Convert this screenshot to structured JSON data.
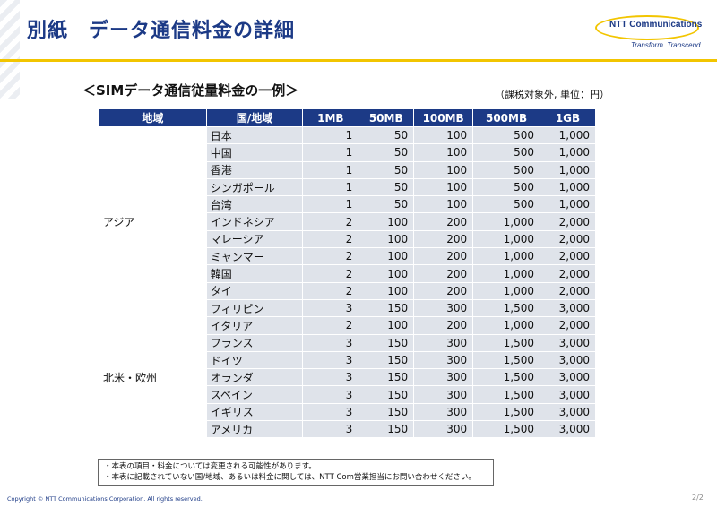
{
  "header": {
    "title": "別紙　データ通信料金の詳細",
    "logo_brand": "NTT Communications",
    "logo_tagline": "Transform. Transcend."
  },
  "subtitle": "＜SIMデータ通信従量料金の一例＞",
  "unit_note": "（課税対象外, 単位：円）",
  "table": {
    "headers": [
      "地域",
      "国/地域",
      "1MB",
      "50MB",
      "100MB",
      "500MB",
      "1GB"
    ],
    "groups": [
      {
        "region": "アジア",
        "rows": [
          {
            "country": "日本",
            "values": [
              "1",
              "50",
              "100",
              "500",
              "1,000"
            ]
          },
          {
            "country": "中国",
            "values": [
              "1",
              "50",
              "100",
              "500",
              "1,000"
            ]
          },
          {
            "country": "香港",
            "values": [
              "1",
              "50",
              "100",
              "500",
              "1,000"
            ]
          },
          {
            "country": "シンガポール",
            "values": [
              "1",
              "50",
              "100",
              "500",
              "1,000"
            ]
          },
          {
            "country": "台湾",
            "values": [
              "1",
              "50",
              "100",
              "500",
              "1,000"
            ]
          },
          {
            "country": "インドネシア",
            "values": [
              "2",
              "100",
              "200",
              "1,000",
              "2,000"
            ]
          },
          {
            "country": "マレーシア",
            "values": [
              "2",
              "100",
              "200",
              "1,000",
              "2,000"
            ]
          },
          {
            "country": "ミャンマー",
            "values": [
              "2",
              "100",
              "200",
              "1,000",
              "2,000"
            ]
          },
          {
            "country": "韓国",
            "values": [
              "2",
              "100",
              "200",
              "1,000",
              "2,000"
            ]
          },
          {
            "country": "タイ",
            "values": [
              "2",
              "100",
              "200",
              "1,000",
              "2,000"
            ]
          },
          {
            "country": "フィリピン",
            "values": [
              "3",
              "150",
              "300",
              "1,500",
              "3,000"
            ]
          }
        ]
      },
      {
        "region": "北米・欧州",
        "rows": [
          {
            "country": "イタリア",
            "values": [
              "2",
              "100",
              "200",
              "1,000",
              "2,000"
            ]
          },
          {
            "country": "フランス",
            "values": [
              "3",
              "150",
              "300",
              "1,500",
              "3,000"
            ]
          },
          {
            "country": "ドイツ",
            "values": [
              "3",
              "150",
              "300",
              "1,500",
              "3,000"
            ]
          },
          {
            "country": "オランダ",
            "values": [
              "3",
              "150",
              "300",
              "1,500",
              "3,000"
            ]
          },
          {
            "country": "スペイン",
            "values": [
              "3",
              "150",
              "300",
              "1,500",
              "3,000"
            ]
          },
          {
            "country": "イギリス",
            "values": [
              "3",
              "150",
              "300",
              "1,500",
              "3,000"
            ]
          },
          {
            "country": "アメリカ",
            "values": [
              "3",
              "150",
              "300",
              "1,500",
              "3,000"
            ]
          }
        ]
      }
    ]
  },
  "notes": [
    "・本表の項目・料金については変更される可能性があります。",
    "・本表に記載されていない国/地域、あるいは料金に関しては、NTT Com営業担当にお問い合わせください。"
  ],
  "footer": {
    "copyright": "Copyright © NTT Communications Corporation. All rights reserved.",
    "page": "2/2"
  },
  "colors": {
    "title_blue": "#1c3a86",
    "accent_yellow": "#f2c500",
    "header_bg": "#1c3a86",
    "row_bg": "#dfe3ea"
  }
}
